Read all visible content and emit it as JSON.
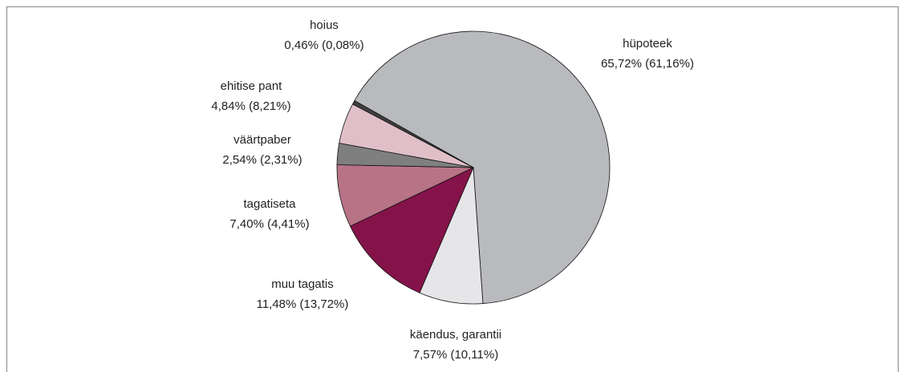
{
  "chart_data": {
    "type": "pie",
    "categories": [
      "hüpoteek",
      "käendus, garantii",
      "muu tagatis",
      "tagatiseta",
      "väärtpaber",
      "ehitise pant",
      "hoius"
    ],
    "values": [
      65.72,
      7.57,
      11.48,
      7.4,
      2.54,
      4.84,
      0.46
    ],
    "value_labels": [
      "65,72% (61,16%)",
      "7,57% (10,11%)",
      "11,48% (13,72%)",
      "7,40% (4,41%)",
      "2,54% (2,31%)",
      "4,84% (8,21%)",
      "0,46% (0,08%)"
    ],
    "colors": [
      "#b9babe",
      "#e6e6e8",
      "#84134a",
      "#b87387",
      "#7f7f80",
      "#e0bfc8",
      "#404040"
    ]
  }
}
